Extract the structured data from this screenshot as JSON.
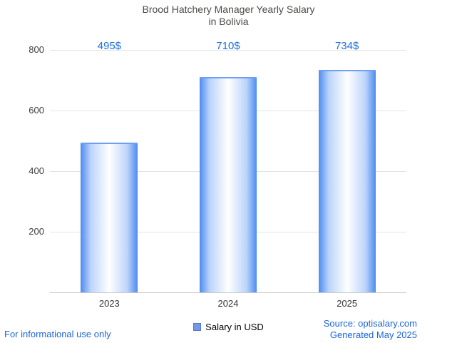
{
  "title": {
    "line1": "Brood Hatchery Manager Yearly Salary",
    "line2": "in Bolivia"
  },
  "chart_data": {
    "type": "bar",
    "categories": [
      "2023",
      "2024",
      "2025"
    ],
    "values": [
      495,
      710,
      734
    ],
    "value_labels": [
      "495$",
      "710$",
      "734$"
    ],
    "ylim": [
      0,
      800
    ],
    "yticks": [
      200,
      400,
      600,
      800
    ],
    "grid": true,
    "legend": {
      "label": "Salary in USD",
      "position": "bottom"
    },
    "colors": {
      "bar_edge": "#4e8bf0",
      "bar_center": "#ffffff",
      "value_label": "#1b6ede",
      "gridline": "#e4e4e4"
    }
  },
  "footer": {
    "disclaimer": "For informational use only",
    "source": "Source: optisalary.com",
    "generated": "Generated May 2025"
  }
}
